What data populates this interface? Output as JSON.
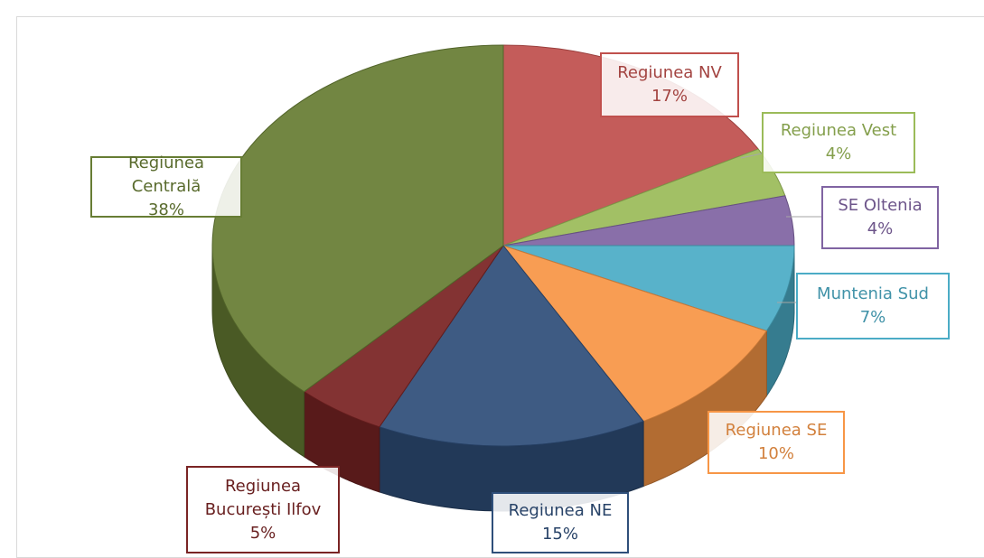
{
  "chart_data": {
    "type": "pie",
    "categories": [
      "Regiunea NV",
      "Regiunea Vest",
      "SE Oltenia",
      "Muntenia Sud",
      "Regiunea SE",
      "Regiunea NE",
      "Regiunea București Ilfov",
      "Regiunea Centrală"
    ],
    "values": [
      17,
      4,
      4,
      7,
      10,
      15,
      5,
      38
    ],
    "value_labels": [
      "17%",
      "4%",
      "4%",
      "7%",
      "10%",
      "15%",
      "5%",
      "38%"
    ],
    "colors": [
      "#c0504d",
      "#9bbb59",
      "#8064a2",
      "#4bacc6",
      "#f79646",
      "#2f4f7a",
      "#7a2424",
      "#677d34"
    ]
  }
}
